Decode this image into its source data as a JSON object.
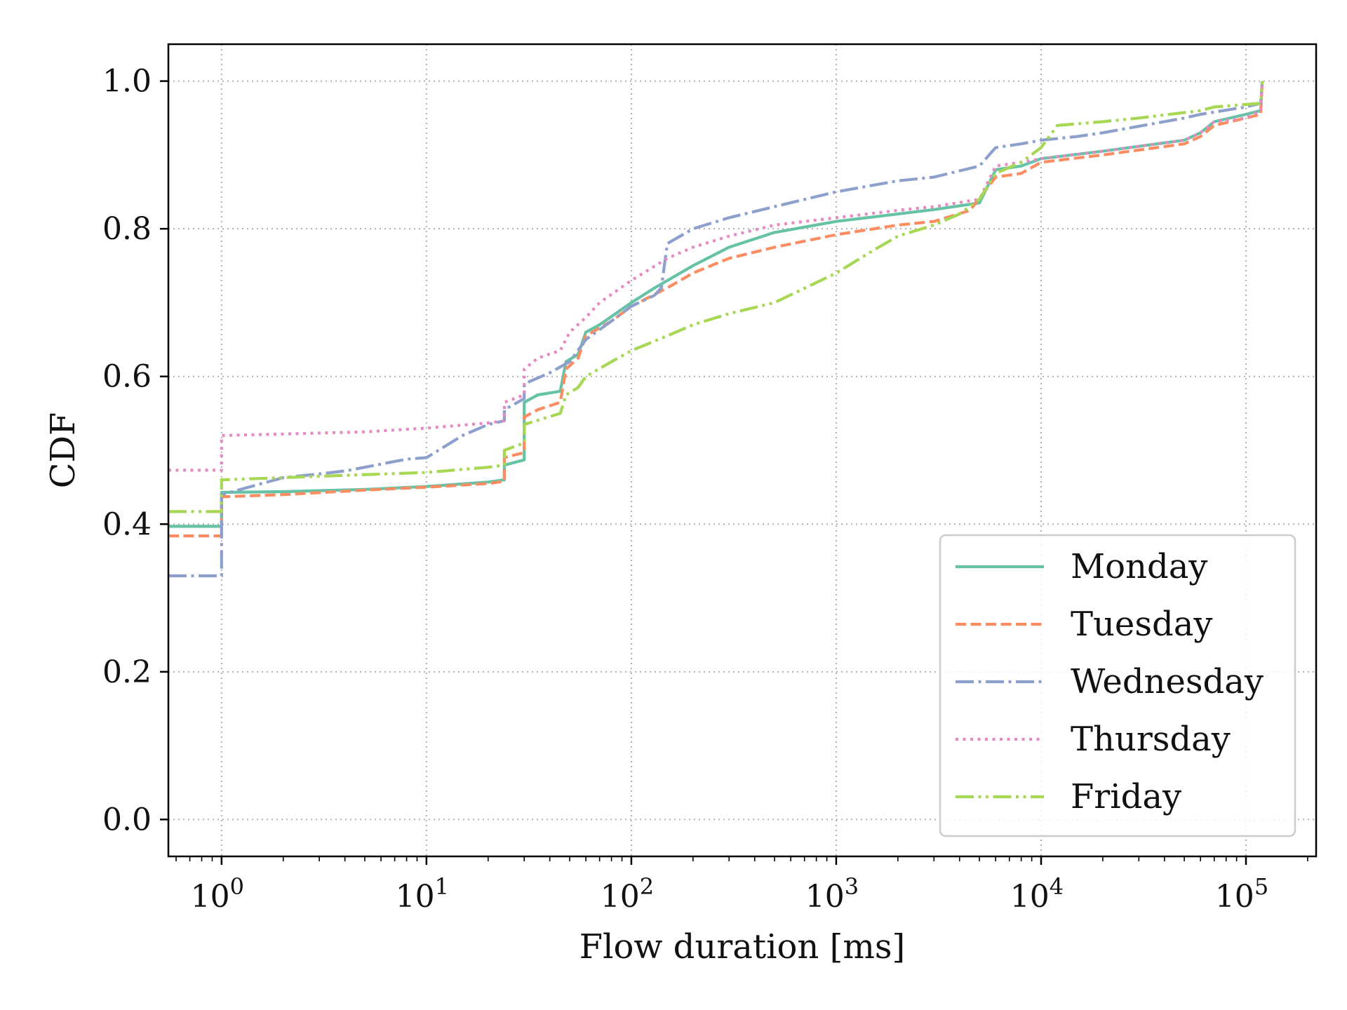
{
  "chart_data": {
    "type": "line",
    "title": "",
    "xlabel": "Flow duration [ms]",
    "ylabel": "CDF",
    "xscale": "log",
    "xlim": [
      0.55,
      220000
    ],
    "ylim": [
      -0.05,
      1.05
    ],
    "x_ticks": [
      {
        "base": "10",
        "exp": "0",
        "value": 1
      },
      {
        "base": "10",
        "exp": "1",
        "value": 10
      },
      {
        "base": "10",
        "exp": "2",
        "value": 100
      },
      {
        "base": "10",
        "exp": "3",
        "value": 1000
      },
      {
        "base": "10",
        "exp": "4",
        "value": 10000
      },
      {
        "base": "10",
        "exp": "5",
        "value": 100000
      }
    ],
    "y_ticks": [
      {
        "label": "0.0",
        "value": 0.0
      },
      {
        "label": "0.2",
        "value": 0.2
      },
      {
        "label": "0.4",
        "value": 0.4
      },
      {
        "label": "0.6",
        "value": 0.6
      },
      {
        "label": "0.8",
        "value": 0.8
      },
      {
        "label": "1.0",
        "value": 1.0
      }
    ],
    "grid": true,
    "legend_position": "lower-right",
    "series": [
      {
        "name": "Monday",
        "color": "#66c2a5",
        "style": "solid",
        "points": [
          [
            0.55,
            0.397
          ],
          [
            1,
            0.397
          ],
          [
            1,
            0.443
          ],
          [
            2,
            0.444
          ],
          [
            5,
            0.447
          ],
          [
            10,
            0.451
          ],
          [
            20,
            0.457
          ],
          [
            24,
            0.46
          ],
          [
            24,
            0.48
          ],
          [
            30,
            0.487
          ],
          [
            30,
            0.565
          ],
          [
            35,
            0.575
          ],
          [
            45,
            0.58
          ],
          [
            48,
            0.62
          ],
          [
            55,
            0.63
          ],
          [
            60,
            0.66
          ],
          [
            70,
            0.67
          ],
          [
            100,
            0.7
          ],
          [
            130,
            0.72
          ],
          [
            200,
            0.75
          ],
          [
            300,
            0.775
          ],
          [
            500,
            0.795
          ],
          [
            1000,
            0.81
          ],
          [
            2000,
            0.82
          ],
          [
            3000,
            0.826
          ],
          [
            5000,
            0.835
          ],
          [
            6000,
            0.88
          ],
          [
            8000,
            0.885
          ],
          [
            10000,
            0.895
          ],
          [
            20000,
            0.905
          ],
          [
            50000,
            0.92
          ],
          [
            60000,
            0.93
          ],
          [
            70000,
            0.945
          ],
          [
            100000,
            0.955
          ],
          [
            118000,
            0.96
          ],
          [
            120000,
            1.0
          ]
        ]
      },
      {
        "name": "Tuesday",
        "color": "#fc8d62",
        "style": "dashed",
        "points": [
          [
            0.55,
            0.384
          ],
          [
            1,
            0.384
          ],
          [
            1,
            0.437
          ],
          [
            2,
            0.44
          ],
          [
            5,
            0.446
          ],
          [
            10,
            0.45
          ],
          [
            20,
            0.455
          ],
          [
            24,
            0.458
          ],
          [
            24,
            0.49
          ],
          [
            30,
            0.497
          ],
          [
            30,
            0.545
          ],
          [
            35,
            0.555
          ],
          [
            45,
            0.565
          ],
          [
            48,
            0.61
          ],
          [
            55,
            0.625
          ],
          [
            60,
            0.655
          ],
          [
            80,
            0.675
          ],
          [
            100,
            0.695
          ],
          [
            150,
            0.72
          ],
          [
            200,
            0.74
          ],
          [
            300,
            0.76
          ],
          [
            500,
            0.775
          ],
          [
            1000,
            0.792
          ],
          [
            2000,
            0.805
          ],
          [
            3000,
            0.81
          ],
          [
            4500,
            0.825
          ],
          [
            6000,
            0.87
          ],
          [
            8000,
            0.875
          ],
          [
            10000,
            0.89
          ],
          [
            20000,
            0.9
          ],
          [
            50000,
            0.915
          ],
          [
            60000,
            0.925
          ],
          [
            70000,
            0.94
          ],
          [
            100000,
            0.95
          ],
          [
            118000,
            0.955
          ],
          [
            120000,
            1.0
          ]
        ]
      },
      {
        "name": "Wednesday",
        "color": "#8da0cb",
        "style": "dashdot",
        "points": [
          [
            0.55,
            0.33
          ],
          [
            1,
            0.33
          ],
          [
            1,
            0.44
          ],
          [
            2,
            0.463
          ],
          [
            3,
            0.468
          ],
          [
            4,
            0.472
          ],
          [
            5,
            0.477
          ],
          [
            8,
            0.488
          ],
          [
            10,
            0.49
          ],
          [
            15,
            0.52
          ],
          [
            20,
            0.535
          ],
          [
            24,
            0.54
          ],
          [
            24,
            0.555
          ],
          [
            30,
            0.57
          ],
          [
            30,
            0.59
          ],
          [
            40,
            0.605
          ],
          [
            50,
            0.62
          ],
          [
            60,
            0.65
          ],
          [
            80,
            0.675
          ],
          [
            100,
            0.695
          ],
          [
            130,
            0.71
          ],
          [
            140,
            0.72
          ],
          [
            150,
            0.78
          ],
          [
            200,
            0.8
          ],
          [
            300,
            0.815
          ],
          [
            500,
            0.83
          ],
          [
            1000,
            0.85
          ],
          [
            2000,
            0.865
          ],
          [
            3000,
            0.87
          ],
          [
            5000,
            0.885
          ],
          [
            6000,
            0.91
          ],
          [
            8000,
            0.915
          ],
          [
            10000,
            0.92
          ],
          [
            15000,
            0.925
          ],
          [
            20000,
            0.93
          ],
          [
            50000,
            0.95
          ],
          [
            60000,
            0.955
          ],
          [
            100000,
            0.965
          ],
          [
            118000,
            0.97
          ],
          [
            120000,
            1.0
          ]
        ]
      },
      {
        "name": "Thursday",
        "color": "#e78ac3",
        "style": "dotted",
        "points": [
          [
            0.55,
            0.473
          ],
          [
            1,
            0.473
          ],
          [
            1,
            0.52
          ],
          [
            2,
            0.522
          ],
          [
            5,
            0.525
          ],
          [
            10,
            0.53
          ],
          [
            20,
            0.537
          ],
          [
            24,
            0.54
          ],
          [
            24,
            0.565
          ],
          [
            30,
            0.575
          ],
          [
            30,
            0.61
          ],
          [
            35,
            0.625
          ],
          [
            45,
            0.635
          ],
          [
            50,
            0.66
          ],
          [
            60,
            0.68
          ],
          [
            70,
            0.7
          ],
          [
            100,
            0.73
          ],
          [
            150,
            0.76
          ],
          [
            200,
            0.775
          ],
          [
            300,
            0.79
          ],
          [
            500,
            0.805
          ],
          [
            1000,
            0.815
          ],
          [
            2000,
            0.825
          ],
          [
            3000,
            0.83
          ],
          [
            5000,
            0.84
          ],
          [
            6000,
            0.885
          ],
          [
            8000,
            0.89
          ],
          [
            10000,
            0.895
          ],
          [
            20000,
            0.905
          ],
          [
            50000,
            0.92
          ],
          [
            60000,
            0.93
          ],
          [
            70000,
            0.945
          ],
          [
            100000,
            0.95
          ],
          [
            118000,
            0.96
          ],
          [
            120000,
            1.0
          ]
        ]
      },
      {
        "name": "Friday",
        "color": "#a6d854",
        "style": "dashdotdot",
        "points": [
          [
            0.55,
            0.417
          ],
          [
            1,
            0.417
          ],
          [
            1,
            0.46
          ],
          [
            2,
            0.463
          ],
          [
            5,
            0.467
          ],
          [
            10,
            0.47
          ],
          [
            20,
            0.477
          ],
          [
            24,
            0.48
          ],
          [
            24,
            0.5
          ],
          [
            30,
            0.51
          ],
          [
            30,
            0.535
          ],
          [
            45,
            0.55
          ],
          [
            48,
            0.575
          ],
          [
            55,
            0.585
          ],
          [
            60,
            0.6
          ],
          [
            80,
            0.62
          ],
          [
            100,
            0.635
          ],
          [
            150,
            0.655
          ],
          [
            200,
            0.67
          ],
          [
            300,
            0.685
          ],
          [
            500,
            0.7
          ],
          [
            1000,
            0.74
          ],
          [
            1500,
            0.77
          ],
          [
            2000,
            0.79
          ],
          [
            3000,
            0.805
          ],
          [
            4000,
            0.82
          ],
          [
            5000,
            0.84
          ],
          [
            6000,
            0.875
          ],
          [
            8000,
            0.89
          ],
          [
            10000,
            0.91
          ],
          [
            12000,
            0.94
          ],
          [
            20000,
            0.945
          ],
          [
            30000,
            0.95
          ],
          [
            60000,
            0.96
          ],
          [
            70000,
            0.965
          ],
          [
            118000,
            0.97
          ],
          [
            120000,
            1.0
          ]
        ]
      }
    ]
  }
}
